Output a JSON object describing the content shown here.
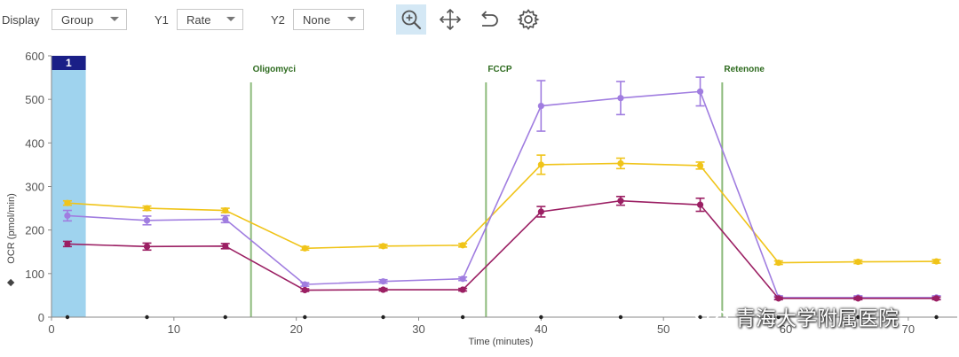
{
  "toolbar": {
    "display_label": "Display",
    "display_value": "Group",
    "y1_label": "Y1",
    "y1_value": "Rate",
    "y2_label": "Y2",
    "y2_value": "None",
    "icons": [
      "zoom-in-icon",
      "pan-move-icon",
      "undo-icon",
      "settings-gear-icon"
    ],
    "active_icon": "zoom-in-icon"
  },
  "watermark": {
    "text": "青海大学附属医院",
    "icon": "wechat-icon"
  },
  "chart_data": {
    "type": "line",
    "xlabel": "Time (minutes)",
    "ylabel": "OCR (pmol/min)",
    "ylabel_marker": "◆",
    "xlim": [
      0,
      74
    ],
    "ylim": [
      0,
      600
    ],
    "x_ticks": [
      0,
      10,
      20,
      30,
      40,
      50,
      60,
      70
    ],
    "x_tick_labels": [
      "0",
      "10",
      "20",
      "30",
      "40",
      "50",
      "60",
      "70"
    ],
    "y_ticks": [
      0,
      100,
      200,
      300,
      400,
      500,
      600
    ],
    "grid": false,
    "x": [
      1.3,
      7.8,
      14.2,
      20.7,
      27.1,
      33.6,
      40.0,
      46.5,
      53.0,
      59.4,
      65.9,
      72.3
    ],
    "series": [
      {
        "color": "#f0c419",
        "values": [
          262,
          250,
          245,
          158,
          163,
          165,
          350,
          353,
          348,
          125,
          127,
          128
        ],
        "errors": [
          5,
          5,
          5,
          4,
          4,
          4,
          22,
          12,
          8,
          4,
          4,
          4
        ]
      },
      {
        "color": "#a07de0",
        "values": [
          233,
          222,
          225,
          75,
          82,
          88,
          485,
          503,
          518,
          45,
          45,
          45
        ],
        "errors": [
          12,
          10,
          8,
          4,
          4,
          4,
          58,
          38,
          33,
          4,
          4,
          4
        ]
      },
      {
        "color": "#9b1f63",
        "values": [
          168,
          162,
          163,
          62,
          63,
          63,
          242,
          267,
          258,
          43,
          43,
          43
        ],
        "errors": [
          6,
          8,
          6,
          3,
          3,
          3,
          12,
          10,
          15,
          3,
          3,
          3
        ]
      }
    ],
    "events": [
      {
        "label": "Oligomyci",
        "x": 16.3
      },
      {
        "label": "FCCP",
        "x": 35.5
      },
      {
        "label": "Retenone",
        "x": 54.8
      }
    ],
    "highlight": {
      "label": "1",
      "x_range": [
        0,
        2.8
      ],
      "color": "#9fd3ee",
      "badge_color": "#1a1f87"
    },
    "x_axis_markers": [
      1.3,
      7.8,
      14.2,
      20.7,
      27.1,
      33.6,
      40.0,
      46.5,
      53.0,
      59.4,
      65.9,
      72.3
    ]
  }
}
